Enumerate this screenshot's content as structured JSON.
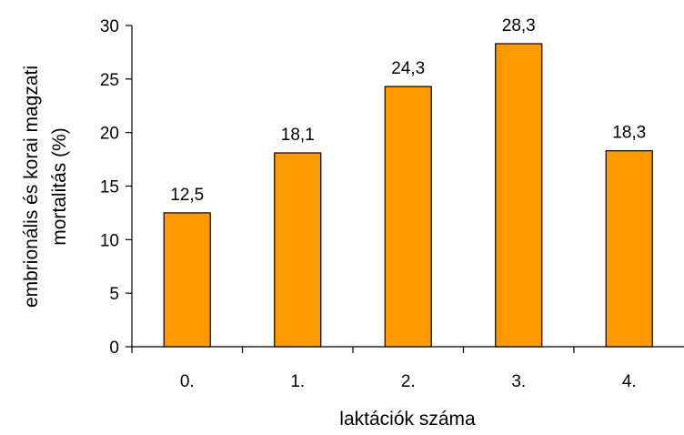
{
  "chart_data": {
    "type": "bar",
    "categories": [
      "0.",
      "1.",
      "2.",
      "3.",
      "4."
    ],
    "values": [
      12.5,
      18.1,
      24.3,
      28.3,
      18.3
    ],
    "value_labels": [
      "12,5",
      "18,1",
      "24,3",
      "28,3",
      "18,3"
    ],
    "xlabel": "laktációk száma",
    "ylabel": [
      "embrionális és korai magzati",
      "mortalitás (%)"
    ],
    "ylim": [
      0,
      30
    ],
    "yticks": [
      0,
      5,
      10,
      15,
      20,
      25,
      30
    ],
    "ytick_labels": [
      "0",
      "5",
      "10",
      "15",
      "20",
      "25",
      "30"
    ],
    "grid": false,
    "legend": "none",
    "colors": {
      "bar_fill": "#FF9900",
      "bar_stroke": "#000000",
      "axis": "#000000"
    }
  }
}
